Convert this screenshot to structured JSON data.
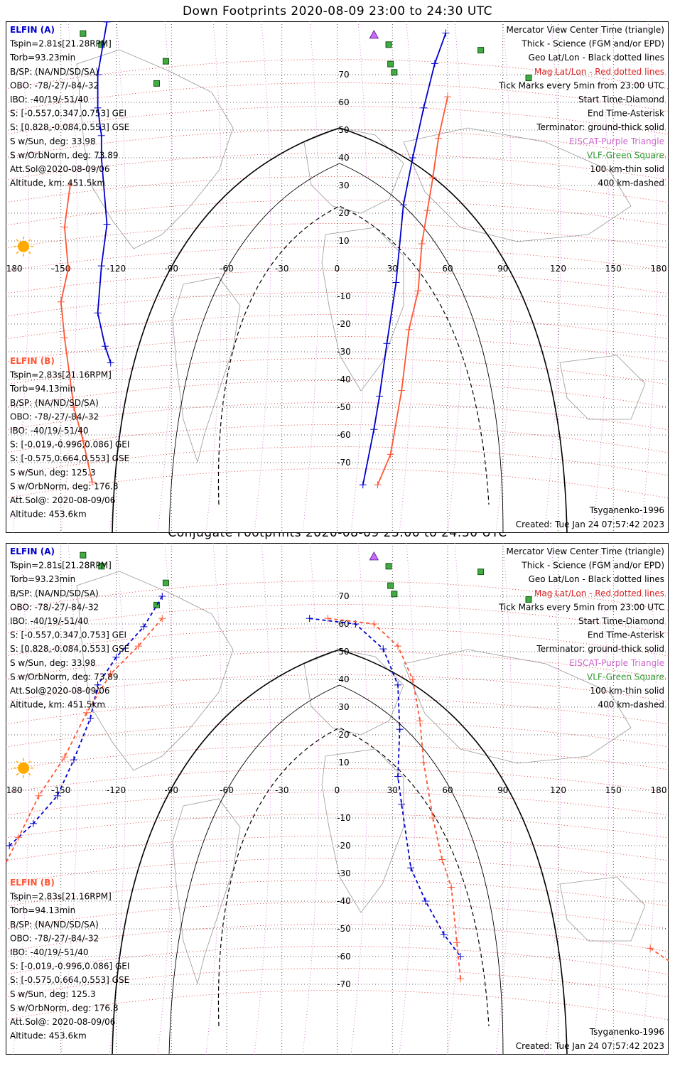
{
  "colors": {
    "elfin_a": "#0000cc",
    "elfin_b": "#ff5533",
    "mag_grid": "#dd2222",
    "geo_grid": "#333333",
    "eiscat": "#cc66cc",
    "vlf": "#339933",
    "sun": "#ffaa00"
  },
  "panels": [
    {
      "title": "Down Footprints 2020-08-09 23:00 to 24:30 UTC",
      "tracks": {
        "a": [
          [
            -125,
            89
          ],
          [
            -130,
            70
          ],
          [
            -130,
            58
          ],
          [
            -128,
            48
          ],
          [
            -128,
            40
          ],
          [
            -125,
            16
          ],
          [
            -128,
            1
          ],
          [
            -130,
            -16
          ],
          [
            -126,
            -28
          ],
          [
            -123,
            -34
          ]
        ],
        "b": [
          [
            -145,
            30
          ],
          [
            -148,
            15
          ],
          [
            -146,
            0
          ],
          [
            -150,
            -12
          ],
          [
            -148,
            -25
          ],
          [
            -143,
            -50
          ],
          [
            -138,
            -62
          ],
          [
            -133,
            -77
          ]
        ],
        "a2": [
          [
            59,
            85
          ],
          [
            53,
            74
          ],
          [
            47,
            58
          ],
          [
            41,
            40
          ],
          [
            36,
            23
          ],
          [
            32,
            -5
          ],
          [
            27,
            -27
          ],
          [
            23,
            -46
          ],
          [
            20,
            -58
          ],
          [
            14,
            -78
          ]
        ],
        "b2": [
          [
            60,
            62
          ],
          [
            55,
            47
          ],
          [
            52,
            33
          ],
          [
            49,
            21
          ],
          [
            46,
            9
          ],
          [
            44,
            -8
          ],
          [
            39,
            -22
          ],
          [
            35,
            -44
          ],
          [
            29,
            -67
          ],
          [
            22,
            -78
          ]
        ]
      }
    },
    {
      "title": "Conjugate Footprints 2020-08-09 23:00 to 24:30 UTC",
      "tracks": {
        "a": [
          [
            -95,
            70
          ],
          [
            -105,
            59
          ],
          [
            -120,
            48
          ],
          [
            -130,
            38
          ],
          [
            -134,
            26
          ],
          [
            -143,
            11
          ],
          [
            -152,
            -2
          ],
          [
            -165,
            -12
          ],
          [
            -178,
            -20
          ]
        ],
        "b": [
          [
            -95,
            62
          ],
          [
            -108,
            52
          ],
          [
            -123,
            42
          ],
          [
            -136,
            28
          ],
          [
            -148,
            12
          ],
          [
            -162,
            -2
          ],
          [
            -173,
            -17
          ],
          [
            -182,
            -29
          ]
        ],
        "a2": [
          [
            -15,
            62
          ],
          [
            10,
            60
          ],
          [
            25,
            51
          ],
          [
            33,
            38
          ],
          [
            34,
            22
          ],
          [
            33,
            5
          ],
          [
            35,
            -5
          ],
          [
            40,
            -28
          ],
          [
            48,
            -40
          ],
          [
            58,
            -52
          ],
          [
            67,
            -60
          ]
        ],
        "b2": [
          [
            -5,
            62
          ],
          [
            20,
            60
          ],
          [
            33,
            52
          ],
          [
            41,
            40
          ],
          [
            45,
            25
          ],
          [
            47,
            10
          ],
          [
            52,
            -10
          ],
          [
            57,
            -25
          ],
          [
            62,
            -35
          ],
          [
            65,
            -55
          ],
          [
            67,
            -68
          ]
        ],
        "c": [
          [
            170,
            -57
          ],
          [
            190,
            -66
          ]
        ]
      }
    }
  ],
  "header": {
    "elfin_a_label": "ELFIN (A)",
    "elfin_b_label": "ELFIN (B)",
    "mercator_view": "Mercator View Center Time (triangle)",
    "thick_science": "Thick - Science (FGM and/or EPD)",
    "geo_latlon": "Geo Lat/Lon - Black dotted lines",
    "mag_latlon": "Mag Lat/Lon - Red dotted lines",
    "tick_marks": "Tick Marks every 5min from 23:00 UTC",
    "start_time": "Start Time-Diamond",
    "end_time": "End Time-Asterisk",
    "terminator": "Terminator: ground-thick solid",
    "eiscat": "EISCAT-Purple Triangle",
    "vlf": "VLF-Green Square",
    "km100": "100 km-thin solid",
    "km400": "400 km-dashed",
    "model": "Tsyganenko-1996",
    "created": "Created: Tue Jan 24 07:57:42 2023"
  },
  "elfin_a": {
    "tspin": "Tspin=2.81s[21.28RPM]",
    "torb": "Torb=93.23min",
    "bsp": "B/SP: (NA/ND/SD/SA)",
    "obo": "OBO: -78/-27/-84/-32",
    "ibo": "IBO: -40/19/-51/40",
    "s_gei": "S: [-0.557,0.347,0.753] GEI",
    "s_gse": "S: [0.828,-0.084,0.553] GSE",
    "sun": "S w/Sun, deg: 33.98",
    "orbnorm": "S w/OrbNorm, deg: 73.89",
    "attsol": "Att.Sol@2020-08-09/06",
    "alt": "Altitude, km: 451.5km"
  },
  "elfin_b": {
    "tspin": "Tspin=2.83s[21.16RPM]",
    "torb": "Torb=94.13min",
    "bsp": "B/SP: (NA/ND/SD/SA)",
    "obo": "OBO: -78/-27/-84/-32",
    "ibo": "IBO: -40/19/-51/40",
    "s_gei": "S: [-0.019,-0.996,0.086] GEI",
    "s_gse": "S: [-0.575,0.664,0.553] GSE",
    "sun": "S w/Sun, deg: 125.3",
    "orbnorm": "S w/OrbNorm, deg: 176.8",
    "attsol": "Att.Sol@: 2020-08-09/06",
    "alt": "Altitude: 453.6km"
  },
  "axes": {
    "lon_ticks": [
      "-180",
      "-150",
      "-120",
      "-90",
      "-60",
      "-30",
      "0",
      "30",
      "60",
      "90",
      "120",
      "150",
      "180"
    ],
    "lon_values": [
      -180,
      -150,
      -120,
      -90,
      -60,
      -30,
      0,
      30,
      60,
      90,
      120,
      150,
      180
    ],
    "lat_values": [
      70,
      60,
      50,
      40,
      30,
      20,
      10,
      -10,
      -20,
      -30,
      -40,
      -50,
      -60,
      -70
    ],
    "lat_labels": [
      "70",
      "60",
      "50",
      "40",
      "30",
      "20",
      "10",
      "-10",
      "-20",
      "-30",
      "-40",
      "-50",
      "-60",
      "-70"
    ]
  }
}
